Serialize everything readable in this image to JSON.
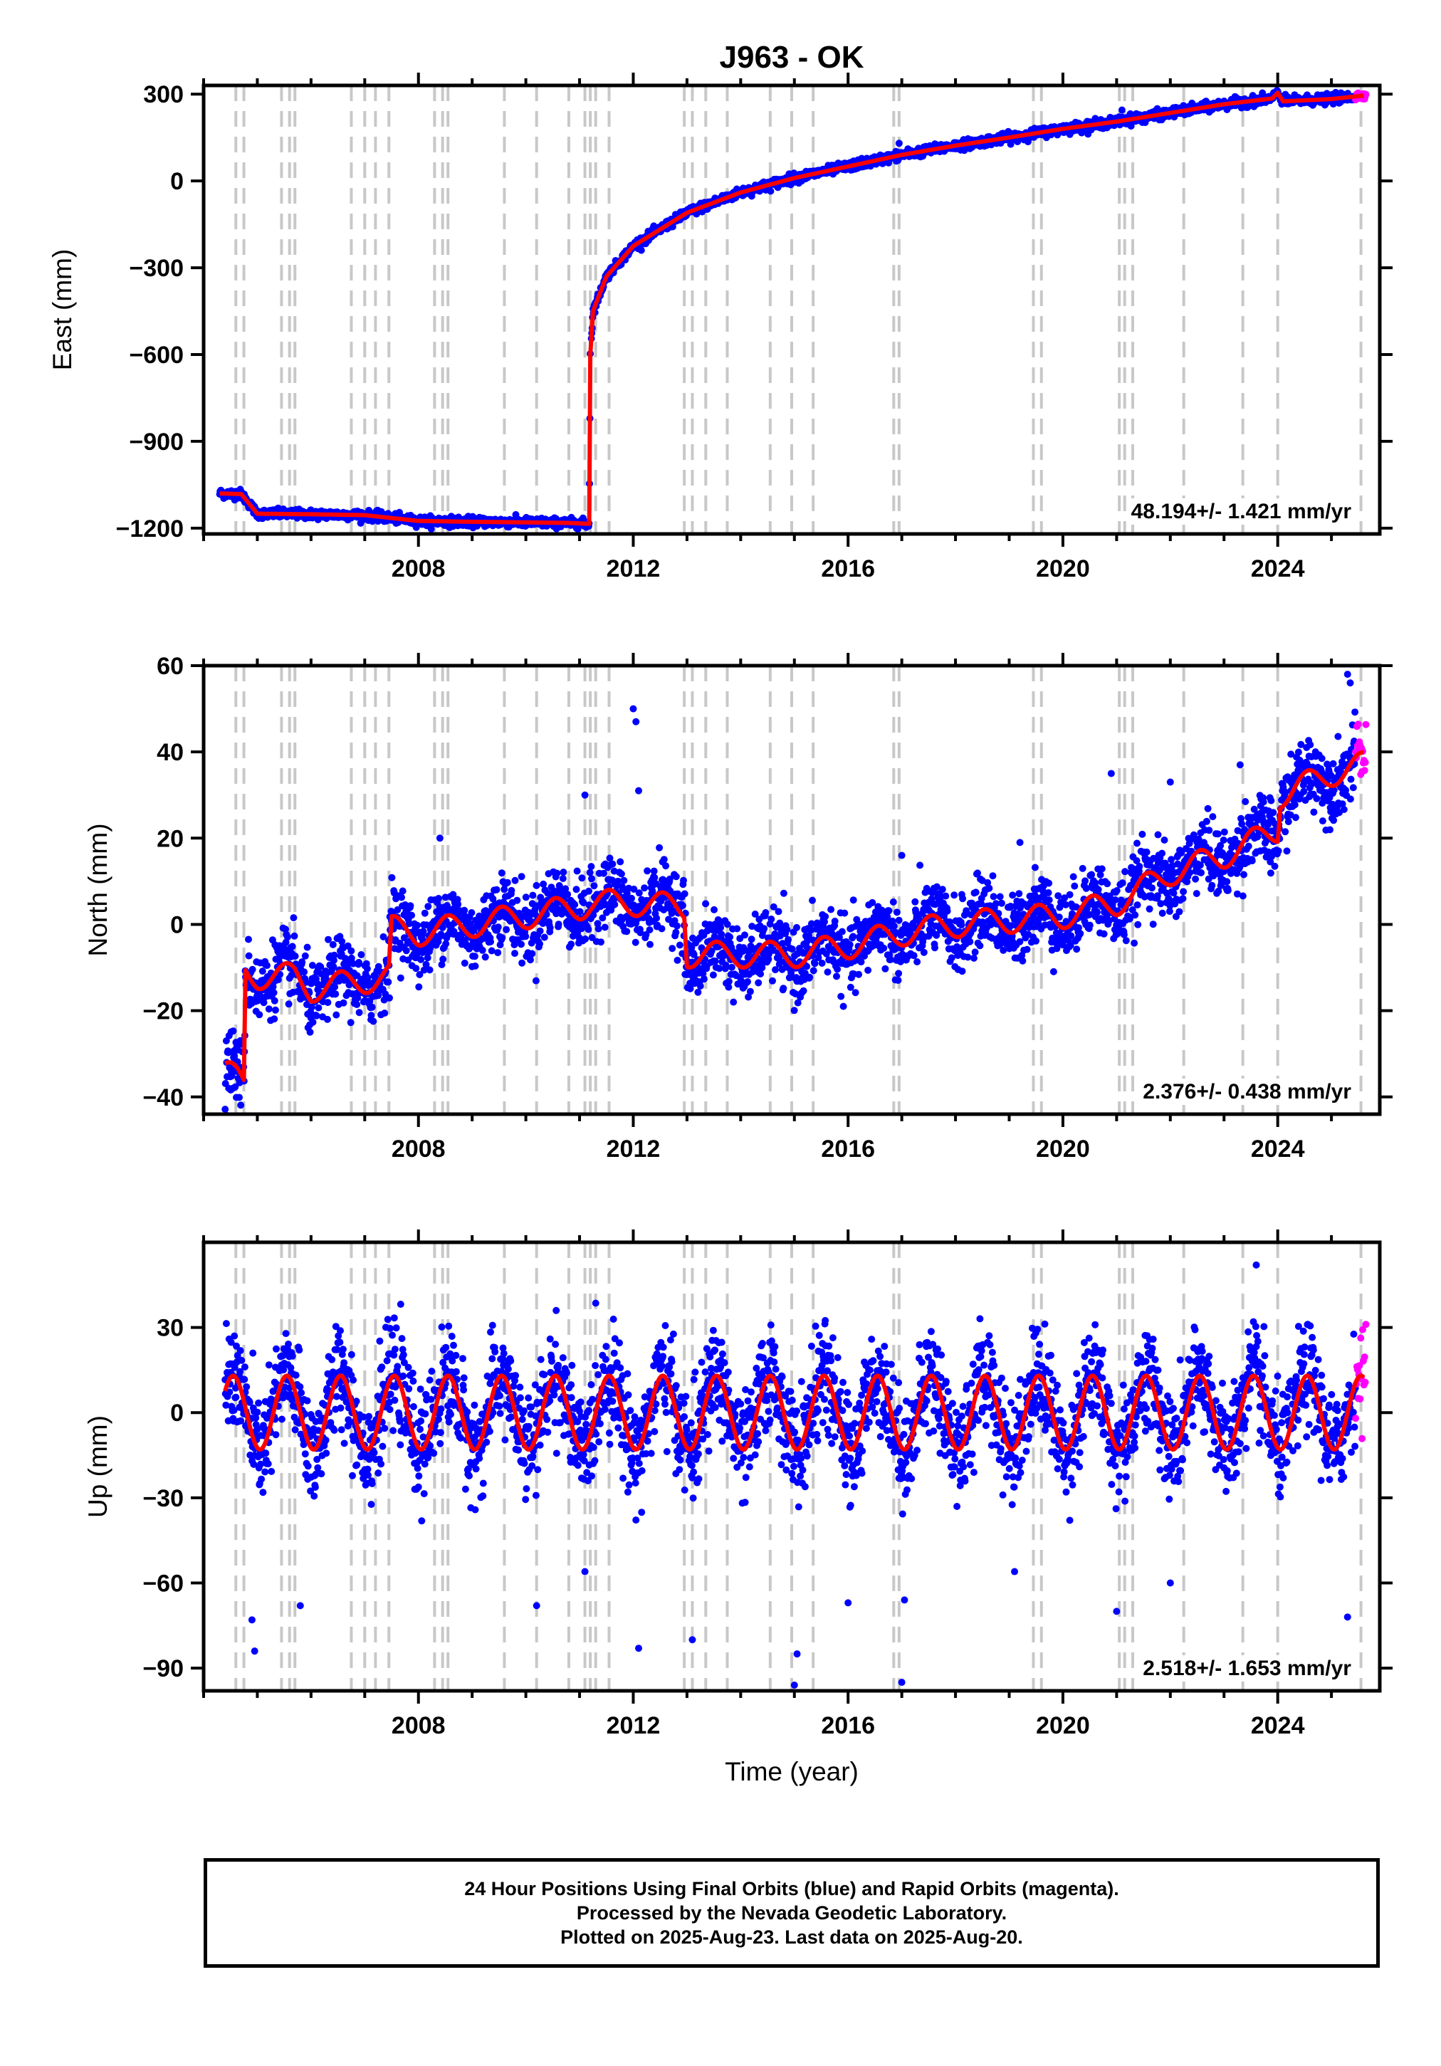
{
  "title": "J963 - OK",
  "xlabel": "Time (year)",
  "colors": {
    "final_orbits": "#0000ff",
    "rapid_orbits": "#ff00ff",
    "model_fit": "#ff0000",
    "event_lines": "#c8c8c8",
    "frame": "#000000"
  },
  "footer": {
    "line1": "24 Hour Positions Using Final Orbits (blue) and Rapid Orbits (magenta).",
    "line2": "Processed by the Nevada Geodetic Laboratory.",
    "line3": "Plotted on 2025-Aug-23. Last data on 2025-Aug-20."
  },
  "chart_data": [
    {
      "type": "scatter",
      "panel": "east",
      "ylabel": "East (mm)",
      "rate_label": "48.194+/- 1.421 mm/yr",
      "xlim": [
        2004.0,
        2025.9
      ],
      "ylim": [
        -1220,
        330
      ],
      "xticks": [
        2008,
        2012,
        2016,
        2020,
        2024
      ],
      "yticks": [
        -1200,
        -900,
        -600,
        -300,
        0,
        300
      ],
      "grid": false,
      "event_lines": [
        2004.6,
        2004.75,
        2005.45,
        2005.6,
        2005.7,
        2006.75,
        2007.0,
        2007.2,
        2007.45,
        2008.3,
        2008.45,
        2008.55,
        2009.6,
        2010.2,
        2010.8,
        2011.1,
        2011.2,
        2011.3,
        2011.55,
        2012.95,
        2013.1,
        2013.35,
        2013.75,
        2014.55,
        2014.95,
        2015.35,
        2016.85,
        2016.95,
        2019.45,
        2019.6,
        2021.05,
        2021.15,
        2021.3,
        2022.25,
        2023.35,
        2024.0,
        2025.55
      ],
      "fit": {
        "x": [
          2004.3,
          2004.65,
          2004.7,
          2005.0,
          2006.0,
          2007.0,
          2007.5,
          2008.0,
          2009.0,
          2010.0,
          2010.8,
          2011.18,
          2011.2,
          2011.25,
          2011.5,
          2012.0,
          2013.0,
          2014.0,
          2015.0,
          2016.0,
          2017.0,
          2018.0,
          2019.0,
          2020.0,
          2021.0,
          2022.0,
          2023.0,
          2023.9,
          2024.0,
          2024.1,
          2025.0,
          2025.6
        ],
        "y": [
          -1080,
          -1082,
          -1082,
          -1150,
          -1152,
          -1155,
          -1165,
          -1175,
          -1178,
          -1180,
          -1182,
          -1185,
          -600,
          -450,
          -330,
          -225,
          -110,
          -40,
          10,
          50,
          90,
          122,
          150,
          180,
          205,
          235,
          265,
          285,
          305,
          275,
          283,
          295
        ]
      },
      "series": [
        {
          "name": "Final Orbits",
          "color": "#0000ff",
          "segments": [
            [
              2004.3,
              2011.2
            ],
            [
              2011.22,
              2025.45
            ]
          ],
          "scatter": 8
        },
        {
          "name": "Rapid Orbits",
          "color": "#ff00ff",
          "segments": [
            [
              2025.45,
              2025.65
            ]
          ],
          "scatter": 8
        }
      ],
      "outliers": [
        {
          "x": 2016.95,
          "y": 130
        },
        {
          "x": 2021.1,
          "y": 245
        }
      ]
    },
    {
      "type": "scatter",
      "panel": "north",
      "ylabel": "North (mm)",
      "rate_label": "2.376+/- 0.438 mm/yr",
      "xlim": [
        2004.0,
        2025.9
      ],
      "ylim": [
        -44,
        60
      ],
      "xticks": [
        2008,
        2012,
        2016,
        2020,
        2024
      ],
      "yticks": [
        -40,
        -20,
        0,
        20,
        40,
        60
      ],
      "grid": false,
      "event_lines": [
        2004.6,
        2004.75,
        2005.45,
        2005.6,
        2005.7,
        2006.75,
        2007.0,
        2007.2,
        2007.45,
        2008.3,
        2008.45,
        2008.55,
        2009.6,
        2010.2,
        2010.8,
        2011.1,
        2011.2,
        2011.3,
        2011.55,
        2012.95,
        2013.1,
        2013.35,
        2013.75,
        2014.55,
        2014.95,
        2015.35,
        2016.85,
        2016.95,
        2019.45,
        2019.6,
        2021.05,
        2021.15,
        2021.3,
        2022.25,
        2023.35,
        2024.0,
        2025.55
      ],
      "fit": {
        "x": [
          2004.4,
          2004.75,
          2004.78,
          2005.0,
          2005.7,
          2006.0,
          2007.0,
          2007.45,
          2007.5,
          2008.0,
          2009.0,
          2010.0,
          2011.0,
          2011.2,
          2012.0,
          2012.95,
          2013.0,
          2014.0,
          2015.0,
          2016.0,
          2017.0,
          2018.0,
          2019.0,
          2020.0,
          2021.0,
          2022.0,
          2023.0,
          2024.0,
          2024.05,
          2025.0,
          2025.6
        ],
        "y": [
          -34,
          -37,
          -11,
          -12,
          -12,
          -15,
          -13,
          -12,
          -1,
          -2,
          0,
          2,
          4,
          5,
          5,
          4,
          -7,
          -7,
          -7,
          -5,
          -2,
          0,
          1,
          2,
          5,
          12,
          16,
          22,
          30,
          35,
          37
        ]
      },
      "seasonal_amplitude": 3,
      "series": [
        {
          "name": "Final Orbits",
          "color": "#0000ff",
          "segments": [
            [
              2004.4,
              2025.45
            ]
          ],
          "scatter": 4
        },
        {
          "name": "Rapid Orbits",
          "color": "#ff00ff",
          "segments": [
            [
              2025.45,
              2025.65
            ]
          ],
          "scatter": 4
        }
      ],
      "outliers": [
        {
          "x": 2012.0,
          "y": 50
        },
        {
          "x": 2012.05,
          "y": 47
        },
        {
          "x": 2012.1,
          "y": 31
        },
        {
          "x": 2011.1,
          "y": 30
        },
        {
          "x": 2008.4,
          "y": 20
        },
        {
          "x": 2017.0,
          "y": 16
        },
        {
          "x": 2019.2,
          "y": 19
        },
        {
          "x": 2020.9,
          "y": 35
        },
        {
          "x": 2022.0,
          "y": 33
        },
        {
          "x": 2023.3,
          "y": 37
        },
        {
          "x": 2025.3,
          "y": 58
        },
        {
          "x": 2025.35,
          "y": 56
        }
      ]
    },
    {
      "type": "scatter",
      "panel": "up",
      "ylabel": "Up (mm)",
      "rate_label": "2.518+/- 1.653 mm/yr",
      "xlim": [
        2004.0,
        2025.9
      ],
      "ylim": [
        -98,
        60
      ],
      "xticks": [
        2008,
        2012,
        2016,
        2020,
        2024
      ],
      "yticks": [
        -90,
        -60,
        -30,
        0,
        30
      ],
      "grid": false,
      "event_lines": [
        2004.6,
        2004.75,
        2005.45,
        2005.6,
        2005.7,
        2006.75,
        2007.0,
        2007.2,
        2007.45,
        2008.3,
        2008.45,
        2008.55,
        2009.6,
        2010.2,
        2010.8,
        2011.1,
        2011.2,
        2011.3,
        2011.55,
        2012.95,
        2013.1,
        2013.35,
        2013.75,
        2014.55,
        2014.95,
        2015.35,
        2016.85,
        2016.95,
        2019.45,
        2019.6,
        2021.05,
        2021.15,
        2021.3,
        2022.25,
        2023.35,
        2024.0,
        2025.55
      ],
      "fit": {
        "x": [
          2004.4,
          2025.6
        ],
        "y": [
          0,
          0
        ]
      },
      "seasonal_amplitude": 13,
      "series": [
        {
          "name": "Final Orbits",
          "color": "#0000ff",
          "segments": [
            [
              2004.4,
              2025.45
            ]
          ],
          "scatter": 9
        },
        {
          "name": "Rapid Orbits",
          "color": "#ff00ff",
          "segments": [
            [
              2025.45,
              2025.65
            ]
          ],
          "scatter": 9
        }
      ],
      "outliers": [
        {
          "x": 2004.9,
          "y": -73
        },
        {
          "x": 2004.95,
          "y": -84
        },
        {
          "x": 2005.8,
          "y": -68
        },
        {
          "x": 2010.2,
          "y": -68
        },
        {
          "x": 2011.1,
          "y": -56
        },
        {
          "x": 2012.1,
          "y": -83
        },
        {
          "x": 2013.1,
          "y": -80
        },
        {
          "x": 2015.0,
          "y": -96
        },
        {
          "x": 2015.05,
          "y": -85
        },
        {
          "x": 2016.0,
          "y": -67
        },
        {
          "x": 2017.0,
          "y": -95
        },
        {
          "x": 2017.05,
          "y": -66
        },
        {
          "x": 2019.1,
          "y": -56
        },
        {
          "x": 2021.0,
          "y": -70
        },
        {
          "x": 2022.0,
          "y": -60
        },
        {
          "x": 2023.6,
          "y": 52
        },
        {
          "x": 2025.3,
          "y": -72
        }
      ]
    }
  ]
}
